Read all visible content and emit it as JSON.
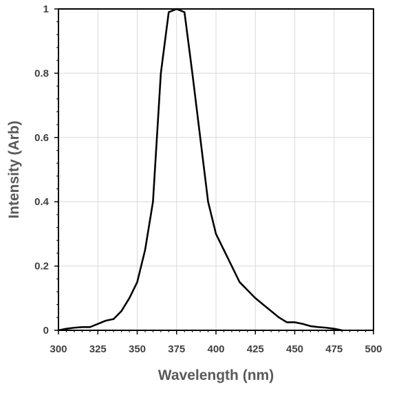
{
  "chart_data": {
    "type": "line",
    "title": "",
    "xlabel": "Wavelength (nm)",
    "ylabel": "Intensity (Arb)",
    "xlim": [
      300,
      500
    ],
    "ylim": [
      0,
      1
    ],
    "xticks": [
      300,
      325,
      350,
      375,
      400,
      425,
      450,
      475,
      500
    ],
    "yticks": [
      0,
      0.2,
      0.4,
      0.6,
      0.8,
      1
    ],
    "ytick_labels": [
      "0",
      "0.2",
      "0.4",
      "0.6",
      "0.8",
      "1"
    ],
    "xtick_labels": [
      "300",
      "325",
      "350",
      "375",
      "400",
      "425",
      "450",
      "475",
      "500"
    ],
    "grid": true,
    "legend": "none",
    "line_color": "#000000",
    "grid_color": "#d9d9d9",
    "series": [
      {
        "x": [
          300,
          305,
          310,
          315,
          320,
          325,
          330,
          335,
          340,
          345,
          350,
          355,
          360,
          365,
          370,
          375,
          380,
          385,
          390,
          395,
          400,
          405,
          410,
          415,
          420,
          425,
          430,
          435,
          440,
          445,
          450,
          455,
          460,
          465,
          470,
          475,
          480
        ],
        "y": [
          0,
          0.005,
          0.008,
          0.01,
          0.01,
          0.02,
          0.03,
          0.035,
          0.06,
          0.1,
          0.15,
          0.25,
          0.4,
          0.8,
          0.99,
          1,
          0.99,
          0.8,
          0.6,
          0.4,
          0.3,
          0.25,
          0.2,
          0.15,
          0.125,
          0.1,
          0.08,
          0.06,
          0.04,
          0.025,
          0.025,
          0.02,
          0.013,
          0.01,
          0.008,
          0.005,
          0
        ]
      }
    ]
  }
}
